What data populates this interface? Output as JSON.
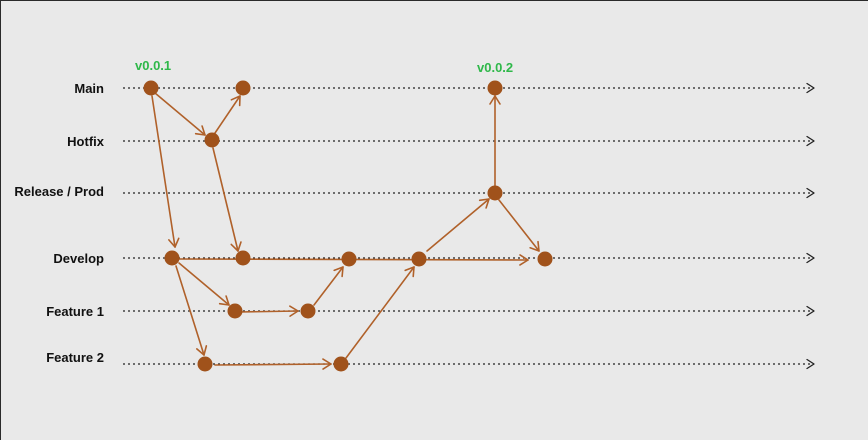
{
  "lanes": {
    "main": "Main",
    "hotfix": "Hotfix",
    "release": "Release / Prod",
    "develop": "Develop",
    "feature1": "Feature 1",
    "feature2": "Feature 2"
  },
  "tags": {
    "v001": "v0.0.1",
    "v002": "v0.0.2"
  },
  "colors": {
    "commit": "#a0521b",
    "arrow": "#b0612a",
    "tag": "#2fb84a",
    "lane_line": "#222222",
    "background": "#e9e9e9"
  }
}
